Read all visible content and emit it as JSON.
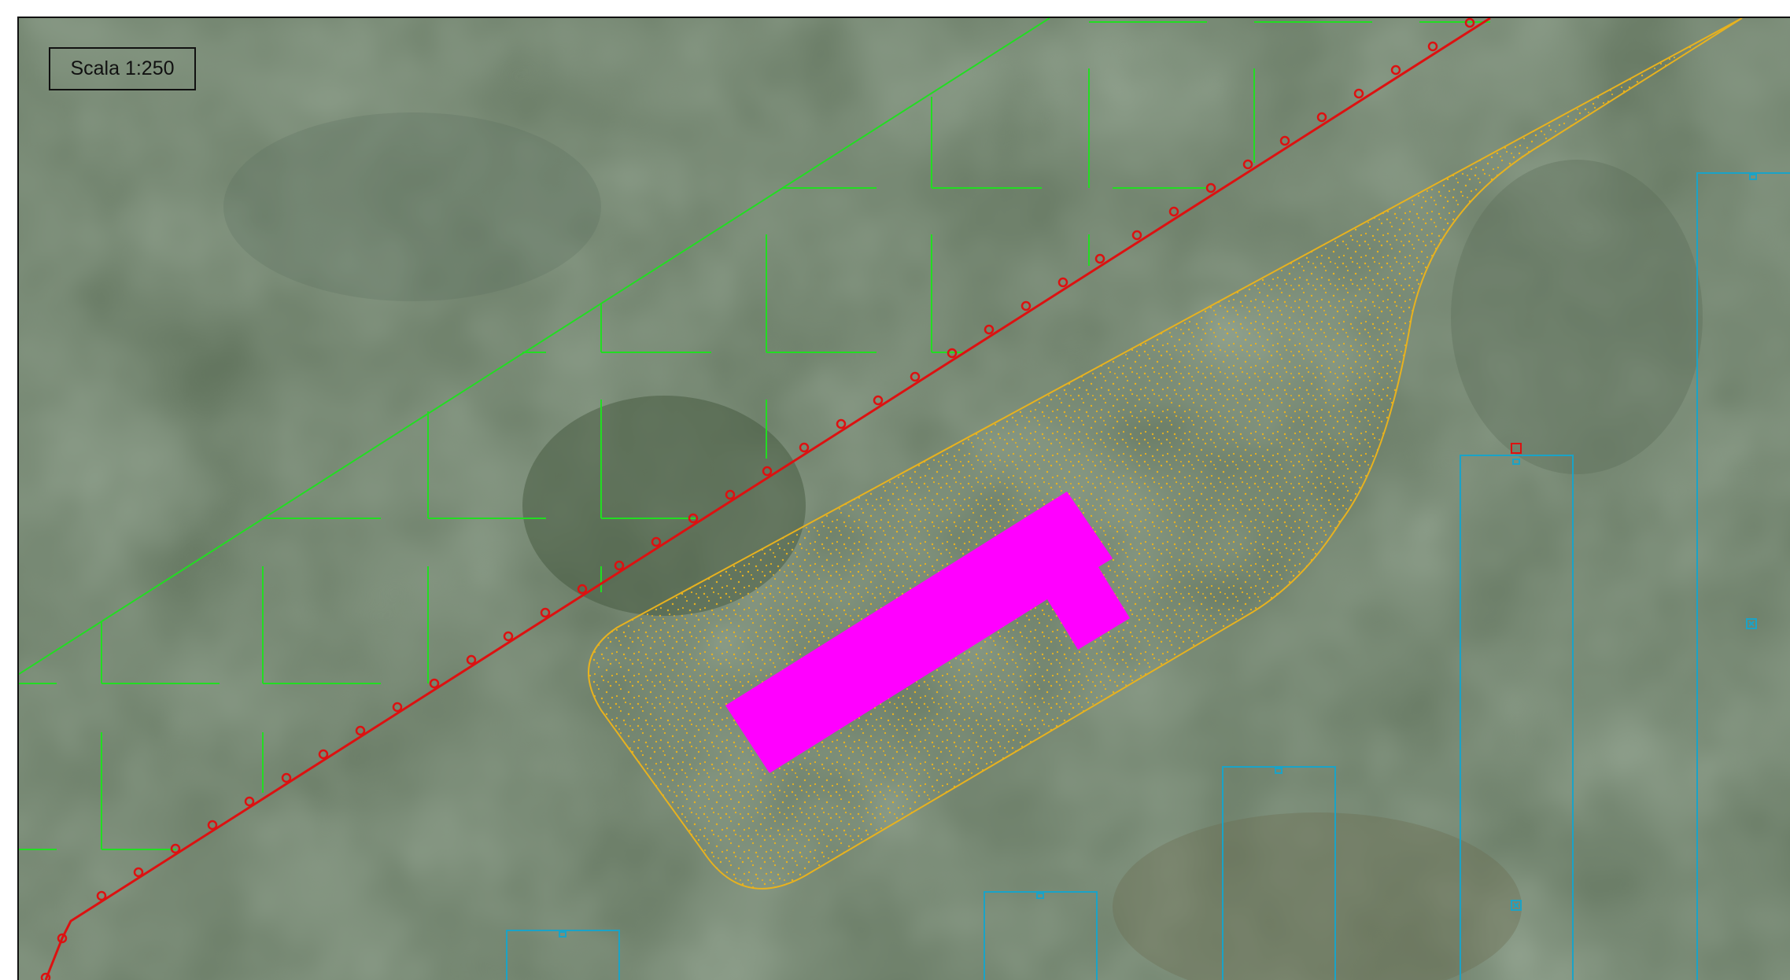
{
  "scale_label": "Scala 1:250",
  "colors": {
    "background": "#4c5f47",
    "parcel_lines": "#22dd22",
    "boundary_line": "#dd1111",
    "gravel_area": "#e8b21e",
    "building": "#ff00ff",
    "structures": "#1aa3c7"
  },
  "layers": [
    {
      "name": "satellite-imagery"
    },
    {
      "name": "parcel-grid"
    },
    {
      "name": "boundary-line"
    },
    {
      "name": "gravel-area"
    },
    {
      "name": "building"
    },
    {
      "name": "structures"
    }
  ]
}
